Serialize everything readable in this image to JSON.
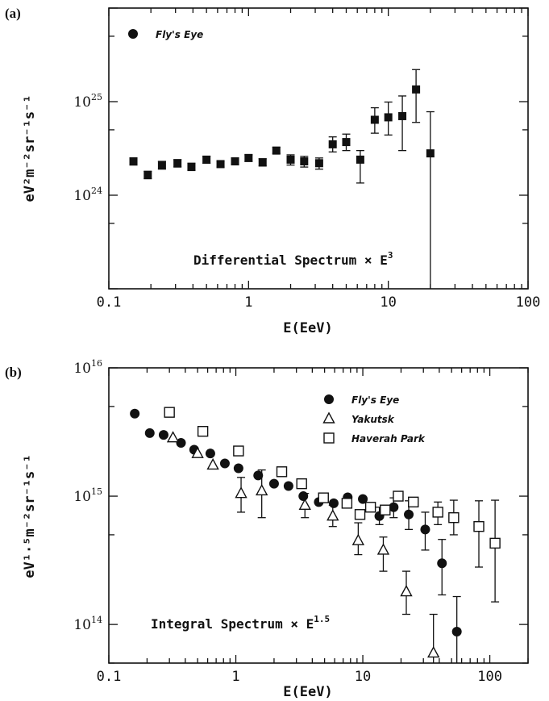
{
  "chart_data": [
    {
      "type": "scatter",
      "panel_label": "(a)",
      "title": "",
      "xlabel": "E(EeV)",
      "ylabel": "eV²m⁻²sr⁻¹s⁻¹",
      "xscale": "log",
      "yscale": "log",
      "xlim": [
        0.1,
        100
      ],
      "ylim": [
        1e+23,
        1e+26
      ],
      "x_ticks": [
        {
          "value": 0.1,
          "label": "0.1"
        },
        {
          "value": 1,
          "label": "1"
        },
        {
          "value": 10,
          "label": "10"
        },
        {
          "value": 100,
          "label": "100"
        }
      ],
      "y_ticks": [
        {
          "value": 1e+24,
          "base": "10",
          "exp": "24"
        },
        {
          "value": 1e+25,
          "base": "10",
          "exp": "25"
        }
      ],
      "legend_position": "top-left",
      "annotation": {
        "text": "Differential Spectrum × E",
        "sup": "3"
      },
      "series": [
        {
          "name": "Fly's Eye",
          "marker": "square-filled",
          "points": [
            {
              "x": 0.15,
              "y": 2.3e+24,
              "lo": 2.1e+24,
              "hi": 2.5e+24
            },
            {
              "x": 0.19,
              "y": 1.65e+24,
              "lo": 1.5e+24,
              "hi": 1.8e+24
            },
            {
              "x": 0.24,
              "y": 2.1e+24,
              "lo": 1.9e+24,
              "hi": 2.3e+24
            },
            {
              "x": 0.31,
              "y": 2.2e+24,
              "lo": 2e+24,
              "hi": 2.4e+24
            },
            {
              "x": 0.39,
              "y": 2e+24,
              "lo": 1.85e+24,
              "hi": 2.2e+24
            },
            {
              "x": 0.5,
              "y": 2.4e+24,
              "lo": 2.2e+24,
              "hi": 2.6e+24
            },
            {
              "x": 0.63,
              "y": 2.15e+24,
              "lo": 2e+24,
              "hi": 2.3e+24
            },
            {
              "x": 0.8,
              "y": 2.3e+24,
              "lo": 2.15e+24,
              "hi": 2.5e+24
            },
            {
              "x": 1.0,
              "y": 2.5e+24,
              "lo": 2.3e+24,
              "hi": 2.7e+24
            },
            {
              "x": 1.26,
              "y": 2.25e+24,
              "lo": 2.05e+24,
              "hi": 2.45e+24
            },
            {
              "x": 1.58,
              "y": 3e+24,
              "lo": 2.8e+24,
              "hi": 3.25e+24
            },
            {
              "x": 2.0,
              "y": 2.4e+24,
              "lo": 2.1e+24,
              "hi": 2.7e+24
            },
            {
              "x": 2.5,
              "y": 2.3e+24,
              "lo": 2e+24,
              "hi": 2.6e+24
            },
            {
              "x": 3.2,
              "y": 2.2e+24,
              "lo": 1.9e+24,
              "hi": 2.5e+24
            },
            {
              "x": 4.0,
              "y": 3.5e+24,
              "lo": 2.9e+24,
              "hi": 4.2e+24
            },
            {
              "x": 5.0,
              "y": 3.7e+24,
              "lo": 3e+24,
              "hi": 4.5e+24
            },
            {
              "x": 6.3,
              "y": 2.4e+24,
              "lo": 1.35e+24,
              "hi": 3e+24
            },
            {
              "x": 8.0,
              "y": 6.4e+24,
              "lo": 4.6e+24,
              "hi": 8.6e+24
            },
            {
              "x": 10.0,
              "y": 6.8e+24,
              "lo": 4.4e+24,
              "hi": 9.9e+24
            },
            {
              "x": 12.6,
              "y": 7e+24,
              "lo": 3e+24,
              "hi": 1.15e+25
            },
            {
              "x": 15.8,
              "y": 1.35e+25,
              "lo": 6e+24,
              "hi": 2.2e+25
            },
            {
              "x": 20.0,
              "y": 2.8e+24,
              "lo": 1e+23,
              "hi": 7.8e+24
            }
          ]
        }
      ]
    },
    {
      "type": "scatter",
      "panel_label": "(b)",
      "title": "",
      "xlabel": "E(EeV)",
      "ylabel": "eV¹·⁵m⁻²sr⁻¹s⁻¹",
      "xscale": "log",
      "yscale": "log",
      "xlim": [
        0.1,
        200
      ],
      "ylim": [
        50000000000000.0,
        1e+16
      ],
      "x_ticks": [
        {
          "value": 0.1,
          "label": "0.1"
        },
        {
          "value": 1,
          "label": "1"
        },
        {
          "value": 10,
          "label": "10"
        },
        {
          "value": 100,
          "label": "100"
        }
      ],
      "y_ticks": [
        {
          "value": 100000000000000.0,
          "base": "10",
          "exp": "14"
        },
        {
          "value": 1000000000000000.0,
          "base": "10",
          "exp": "15"
        },
        {
          "value": 1e+16,
          "base": "10",
          "exp": "16"
        }
      ],
      "legend_position": "top-right",
      "annotation": {
        "text": "Integral Spectrum × E",
        "sup": "1.5"
      },
      "series": [
        {
          "name": "Fly's Eye",
          "marker": "circle-filled",
          "points": [
            {
              "x": 0.16,
              "y": 4400000000000000.0
            },
            {
              "x": 0.21,
              "y": 3100000000000000.0
            },
            {
              "x": 0.27,
              "y": 3000000000000000.0
            },
            {
              "x": 0.37,
              "y": 2600000000000000.0
            },
            {
              "x": 0.47,
              "y": 2300000000000000.0
            },
            {
              "x": 0.63,
              "y": 2150000000000000.0
            },
            {
              "x": 0.82,
              "y": 1800000000000000.0
            },
            {
              "x": 1.05,
              "y": 1650000000000000.0
            },
            {
              "x": 1.5,
              "y": 1450000000000000.0
            },
            {
              "x": 2.0,
              "y": 1250000000000000.0
            },
            {
              "x": 2.6,
              "y": 1200000000000000.0
            },
            {
              "x": 3.4,
              "y": 1000000000000000.0
            },
            {
              "x": 4.5,
              "y": 900000000000000.0
            },
            {
              "x": 5.9,
              "y": 880000000000000.0
            },
            {
              "x": 7.6,
              "y": 980000000000000.0
            },
            {
              "x": 10.0,
              "y": 950000000000000.0
            },
            {
              "x": 13.5,
              "y": 700000000000000.0,
              "lo": 600000000000000.0,
              "hi": 820000000000000.0
            },
            {
              "x": 17.5,
              "y": 820000000000000.0,
              "lo": 680000000000000.0,
              "hi": 970000000000000.0
            },
            {
              "x": 23.0,
              "y": 720000000000000.0,
              "lo": 550000000000000.0,
              "hi": 920000000000000.0
            },
            {
              "x": 31.0,
              "y": 550000000000000.0,
              "lo": 380000000000000.0,
              "hi": 750000000000000.0
            },
            {
              "x": 42.0,
              "y": 300000000000000.0,
              "lo": 170000000000000.0,
              "hi": 460000000000000.0
            },
            {
              "x": 55.0,
              "y": 88000000000000.0,
              "lo": 33000000000000.0,
              "hi": 165000000000000.0
            }
          ]
        },
        {
          "name": "Yakutsk",
          "marker": "triangle-open",
          "points": [
            {
              "x": 0.32,
              "y": 2850000000000000.0
            },
            {
              "x": 0.5,
              "y": 2150000000000000.0
            },
            {
              "x": 0.66,
              "y": 1750000000000000.0
            },
            {
              "x": 1.1,
              "y": 1050000000000000.0,
              "lo": 750000000000000.0,
              "hi": 1400000000000000.0
            },
            {
              "x": 1.6,
              "y": 1100000000000000.0,
              "lo": 680000000000000.0,
              "hi": 1600000000000000.0
            },
            {
              "x": 3.5,
              "y": 850000000000000.0,
              "lo": 680000000000000.0,
              "hi": 1050000000000000.0
            },
            {
              "x": 5.8,
              "y": 700000000000000.0,
              "lo": 580000000000000.0,
              "hi": 850000000000000.0
            },
            {
              "x": 9.2,
              "y": 450000000000000.0,
              "lo": 350000000000000.0,
              "hi": 620000000000000.0
            },
            {
              "x": 14.5,
              "y": 380000000000000.0,
              "lo": 260000000000000.0,
              "hi": 480000000000000.0
            },
            {
              "x": 22.0,
              "y": 180000000000000.0,
              "lo": 120000000000000.0,
              "hi": 260000000000000.0
            },
            {
              "x": 36.0,
              "y": 60000000000000.0,
              "lo": 40000000000000.0,
              "hi": 120000000000000.0
            }
          ]
        },
        {
          "name": "Haverah Park",
          "marker": "square-open",
          "points": [
            {
              "x": 0.3,
              "y": 4500000000000000.0
            },
            {
              "x": 0.55,
              "y": 3200000000000000.0
            },
            {
              "x": 1.05,
              "y": 2250000000000000.0
            },
            {
              "x": 2.3,
              "y": 1550000000000000.0
            },
            {
              "x": 3.3,
              "y": 1250000000000000.0
            },
            {
              "x": 4.9,
              "y": 970000000000000.0
            },
            {
              "x": 7.5,
              "y": 880000000000000.0
            },
            {
              "x": 9.5,
              "y": 720000000000000.0
            },
            {
              "x": 11.5,
              "y": 820000000000000.0
            },
            {
              "x": 15.0,
              "y": 780000000000000.0
            },
            {
              "x": 19.0,
              "y": 1000000000000000.0
            },
            {
              "x": 25.0,
              "y": 900000000000000.0
            },
            {
              "x": 39.0,
              "y": 750000000000000.0,
              "lo": 600000000000000.0,
              "hi": 900000000000000.0
            },
            {
              "x": 52.0,
              "y": 680000000000000.0,
              "lo": 500000000000000.0,
              "hi": 930000000000000.0
            },
            {
              "x": 82.0,
              "y": 580000000000000.0,
              "lo": 280000000000000.0,
              "hi": 920000000000000.0
            },
            {
              "x": 110.0,
              "y": 430000000000000.0,
              "lo": 150000000000000.0,
              "hi": 930000000000000.0
            }
          ]
        }
      ]
    }
  ]
}
